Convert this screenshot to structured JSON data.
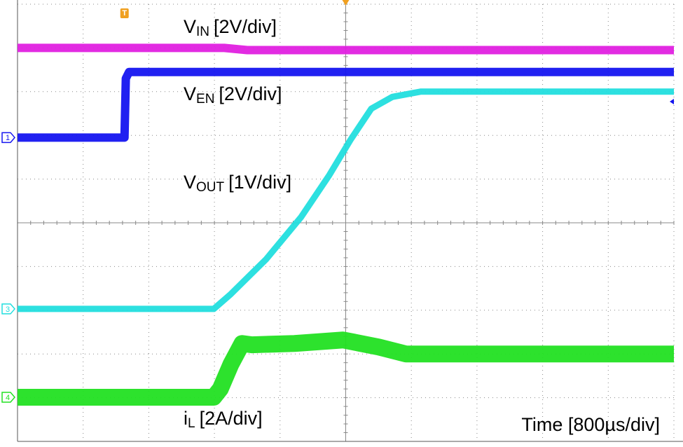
{
  "chart_data": {
    "type": "line",
    "xlim": [
      0,
      10
    ],
    "ylim": [
      -5,
      5
    ],
    "xticks": [
      0,
      1,
      2,
      3,
      4,
      5,
      6,
      7,
      8,
      9,
      10
    ],
    "yticks": [
      -5,
      -4,
      -3,
      -2,
      -1,
      0,
      1,
      2,
      3,
      4,
      5
    ],
    "grid": true,
    "trigger_label": "T",
    "x_label": "Time [800µs/div]",
    "series": [
      {
        "label": {
          "text": "V",
          "sub": "IN",
          "scale": "[2V/div]"
        },
        "color": "#e020e0",
        "x": [
          0,
          3.15,
          3.5,
          10
        ],
        "values": [
          4.0,
          4.0,
          3.95,
          3.95
        ]
      },
      {
        "label": {
          "text": "V",
          "sub": "EN",
          "scale": "[2V/div]"
        },
        "color": "#1515f0",
        "marker": "1",
        "x": [
          0,
          1.63,
          1.65,
          1.7,
          10
        ],
        "values": [
          1.95,
          1.95,
          3.3,
          3.45,
          3.45
        ]
      },
      {
        "label": {
          "text": "V",
          "sub": "OUT",
          "scale": "[1V/div]"
        },
        "color": "#22dede",
        "marker": "3",
        "x": [
          0,
          2.99,
          3.25,
          3.79,
          4.32,
          4.75,
          5.07,
          5.39,
          5.71,
          6.14,
          10
        ],
        "values": [
          -1.97,
          -1.97,
          -1.63,
          -0.83,
          0.13,
          1.09,
          1.89,
          2.61,
          2.88,
          3.0,
          3.0
        ]
      },
      {
        "label": {
          "text": "i",
          "sub": "L",
          "scale": "[2A/div]"
        },
        "color": "#22e022",
        "marker": "4",
        "x": [
          0,
          2.99,
          3.09,
          3.25,
          3.42,
          3.57,
          4.22,
          4.96,
          5.5,
          5.92,
          10
        ],
        "values": [
          -3.99,
          -3.99,
          -3.8,
          -3.24,
          -2.76,
          -2.79,
          -2.76,
          -2.68,
          -2.84,
          -3.0,
          -3.0
        ]
      }
    ]
  }
}
